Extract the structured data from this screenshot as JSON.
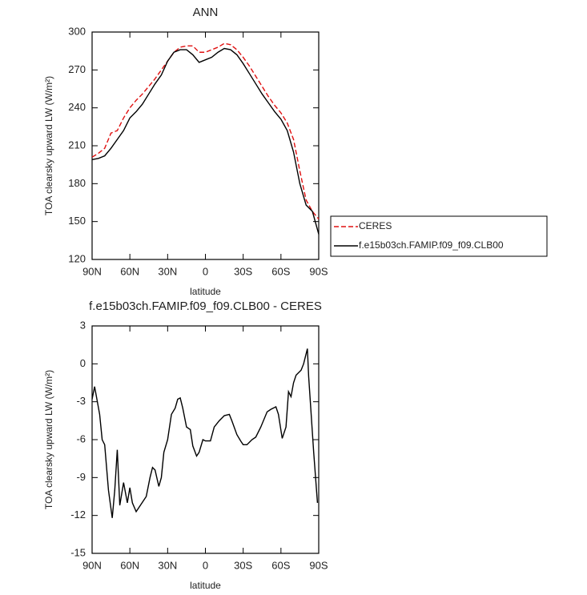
{
  "chart_data": [
    {
      "type": "line",
      "title": "ANN",
      "xlabel": "latitude",
      "ylabel": "TOA clearsky upward LW (W/m²)",
      "x": [
        90,
        85,
        80,
        75,
        70,
        65,
        60,
        55,
        50,
        45,
        40,
        35,
        30,
        25,
        20,
        15,
        10,
        5,
        0,
        -5,
        -10,
        -15,
        -20,
        -25,
        -30,
        -35,
        -40,
        -45,
        -50,
        -55,
        -60,
        -65,
        -70,
        -75,
        -80,
        -85,
        -90
      ],
      "series": [
        {
          "name": "CERES",
          "color": "#e01010",
          "dash": true,
          "values": [
            201,
            204,
            208,
            220,
            222,
            232,
            240,
            246,
            251,
            257,
            263,
            270,
            277,
            284,
            288,
            289,
            289,
            284,
            284,
            286,
            288,
            291,
            290,
            286,
            280,
            273,
            265,
            257,
            249,
            242,
            236,
            228,
            215,
            190,
            167,
            158,
            152
          ]
        },
        {
          "name": "f.e15b03ch.FAMIP.f09_f09.CLB00",
          "color": "#000000",
          "dash": false,
          "values": [
            199,
            200,
            202,
            208,
            215,
            222,
            232,
            237,
            243,
            251,
            259,
            266,
            277,
            284,
            286,
            286,
            282,
            276,
            278,
            280,
            284,
            287,
            286,
            282,
            275,
            267,
            259,
            251,
            244,
            237,
            231,
            222,
            205,
            180,
            163,
            158,
            140
          ]
        }
      ],
      "xlim": [
        90,
        -90
      ],
      "ylim": [
        120,
        300
      ],
      "xticks": [
        {
          "value": 90,
          "label": "90N"
        },
        {
          "value": 60,
          "label": "60N"
        },
        {
          "value": 30,
          "label": "30N"
        },
        0,
        {
          "value": -30,
          "label": "30S"
        },
        {
          "value": -60,
          "label": "60S"
        },
        {
          "value": -90,
          "label": "90S"
        }
      ],
      "yticks": [
        120,
        150,
        180,
        210,
        240,
        270,
        300
      ],
      "legend": "outside right"
    },
    {
      "type": "line",
      "title": "f.e15b03ch.FAMIP.f09_f09.CLB00 - CERES",
      "xlabel": "latitude",
      "ylabel": "TOA clearsky upward LW (W/m²)",
      "x": [
        90,
        88,
        84,
        82,
        80,
        77,
        74,
        72,
        70,
        68,
        65,
        62,
        60,
        58,
        55,
        47,
        44,
        42,
        40,
        37,
        35,
        33,
        30,
        27,
        24,
        22,
        20,
        18,
        15,
        12,
        10,
        7,
        5,
        2,
        0,
        -4,
        -7,
        -11,
        -15,
        -19,
        -21,
        -25,
        -28,
        -30,
        -33,
        -37,
        -40,
        -44,
        -49,
        -52,
        -56,
        -58,
        -61,
        -64,
        -66,
        -68,
        -70,
        -72,
        -76,
        -78,
        -81,
        -82,
        -86,
        -89
      ],
      "series": [
        {
          "color": "#000000",
          "dash": false,
          "values": [
            -2.8,
            -1.8,
            -4,
            -6,
            -6.4,
            -10,
            -12.2,
            -10,
            -6.8,
            -11.2,
            -9.4,
            -11,
            -9.8,
            -11,
            -11.7,
            -10.5,
            -9,
            -8.2,
            -8.4,
            -9.7,
            -9,
            -7,
            -6,
            -4,
            -3.5,
            -2.8,
            -2.7,
            -3.5,
            -5,
            -5.2,
            -6.5,
            -7.3,
            -7,
            -6,
            -6.1,
            -6.1,
            -5,
            -4.5,
            -4.1,
            -4,
            -4.5,
            -5.6,
            -6.1,
            -6.4,
            -6.4,
            -6,
            -5.8,
            -5,
            -3.8,
            -3.6,
            -3.4,
            -4,
            -5.9,
            -5,
            -2.2,
            -2.6,
            -1.5,
            -0.9,
            -0.5,
            0,
            1.2,
            -1,
            -7,
            -11
          ]
        }
      ],
      "xlim": [
        90,
        -90
      ],
      "ylim": [
        -15,
        3
      ],
      "xticks": [
        {
          "value": 90,
          "label": "90N"
        },
        {
          "value": 60,
          "label": "60N"
        },
        {
          "value": 30,
          "label": "30N"
        },
        0,
        {
          "value": -30,
          "label": "30S"
        },
        {
          "value": -60,
          "label": "60S"
        },
        {
          "value": -90,
          "label": "90S"
        }
      ],
      "yticks": [
        -15,
        -12,
        -9,
        -6,
        -3,
        0,
        3
      ]
    }
  ]
}
